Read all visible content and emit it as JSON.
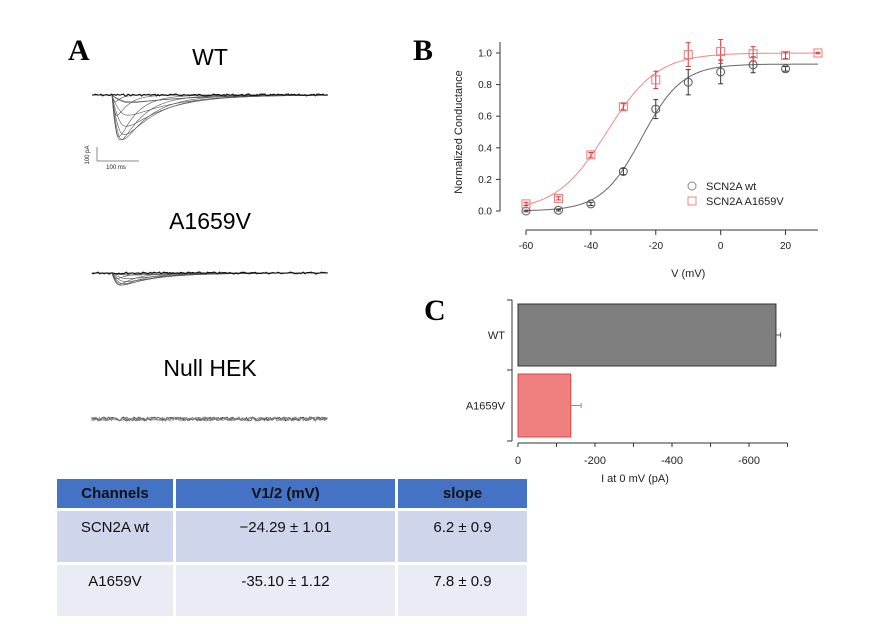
{
  "panels": {
    "a": {
      "letter": "A",
      "traces": [
        {
          "label": "WT",
          "amplitude": 1.0,
          "kind": "current"
        },
        {
          "label": "A1659V",
          "amplitude": 0.27,
          "kind": "current"
        },
        {
          "label": "Null HEK",
          "amplitude": 0.0,
          "kind": "noise"
        }
      ],
      "scale_bar": {
        "y_label": "100 pA",
        "x_label": "100 ms"
      }
    },
    "b": {
      "letter": "B"
    },
    "c": {
      "letter": "C"
    }
  },
  "table": {
    "headers": [
      "Channels",
      "V1/2 (mV)",
      "slope"
    ],
    "rows": [
      [
        "SCN2A wt",
        "−24.29 ± 1.01",
        "6.2 ± 0.9"
      ],
      [
        "A1659V",
        "-35.10 ± 1.12",
        "7.8 ± 0.9"
      ]
    ],
    "colors": {
      "header": "#4472c4",
      "row_odd": "#cfd5ea",
      "row_even": "#e9ebf5"
    }
  },
  "chart_data": [
    {
      "type": "scatter",
      "panel": "B",
      "title": "",
      "xlabel": "V (mV)",
      "ylabel": "Normalized Conductance",
      "xlim": [
        -60,
        30
      ],
      "ylim": [
        0,
        1.0
      ],
      "xticks": [
        -60,
        -40,
        -20,
        0,
        20
      ],
      "yticks": [
        0.0,
        0.2,
        0.4,
        0.6,
        0.8,
        1.0
      ],
      "legend_position": "bottom-right",
      "grid": false,
      "series": [
        {
          "name": "SCN2A wt",
          "marker": "circle",
          "color": "#555555",
          "x": [
            -60,
            -50,
            -40,
            -30,
            -20,
            -10,
            0,
            10,
            20
          ],
          "y": [
            0.0,
            0.005,
            0.045,
            0.25,
            0.645,
            0.815,
            0.88,
            0.925,
            0.9
          ],
          "error": [
            0.005,
            0.005,
            0.01,
            0.02,
            0.06,
            0.08,
            0.075,
            0.05,
            0.015
          ],
          "fit": {
            "type": "boltzmann",
            "v_half": -24.29,
            "slope": 6.2,
            "gmax": 0.93
          }
        },
        {
          "name": "SCN2A A1659V",
          "marker": "square",
          "color": "#e06666",
          "x": [
            -60,
            -50,
            -40,
            -30,
            -20,
            -10,
            0,
            10,
            20,
            30
          ],
          "y": [
            0.045,
            0.08,
            0.355,
            0.66,
            0.83,
            0.99,
            1.01,
            0.995,
            0.985,
            1.0
          ],
          "error": [
            0.01,
            0.01,
            0.015,
            0.02,
            0.055,
            0.075,
            0.075,
            0.045,
            0.02,
            0.005
          ],
          "fit": {
            "type": "boltzmann",
            "v_half": -35.1,
            "slope": 7.8,
            "gmax": 1.0
          }
        }
      ]
    },
    {
      "type": "bar",
      "panel": "C",
      "orientation": "horizontal",
      "title": "",
      "xlabel": "I at 0 mV (pA)",
      "ylabel": "",
      "categories": [
        "WT",
        "A1659V"
      ],
      "values": [
        -670,
        -137
      ],
      "errors": [
        12,
        27
      ],
      "colors": [
        "#7f7f7f",
        "#f08080"
      ],
      "xlim": [
        0,
        -700
      ],
      "xticks": [
        0,
        -200,
        -400,
        -600
      ],
      "grid": false
    }
  ]
}
